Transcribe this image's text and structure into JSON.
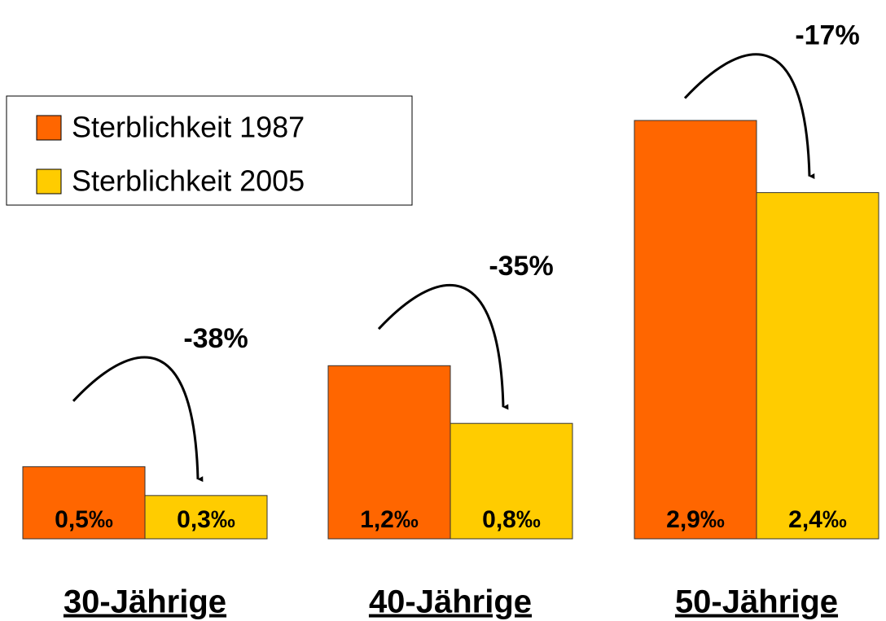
{
  "chart_data": {
    "type": "bar",
    "categories": [
      "30-Jährige",
      "40-Jährige",
      "50-Jährige"
    ],
    "series": [
      {
        "name": "Sterblichkeit 1987",
        "color": "#ff6600",
        "values": [
          0.5,
          1.2,
          2.9
        ],
        "value_labels": [
          "0,5‰",
          "1,2‰",
          "2,9‰"
        ]
      },
      {
        "name": "Sterblichkeit 2005",
        "color": "#ffcc00",
        "values": [
          0.3,
          0.8,
          2.4
        ],
        "value_labels": [
          "0,3‰",
          "0,8‰",
          "2,4‰"
        ]
      }
    ],
    "annotations": [
      "-38%",
      "-35%",
      "-17%"
    ],
    "legend": "upper left"
  }
}
